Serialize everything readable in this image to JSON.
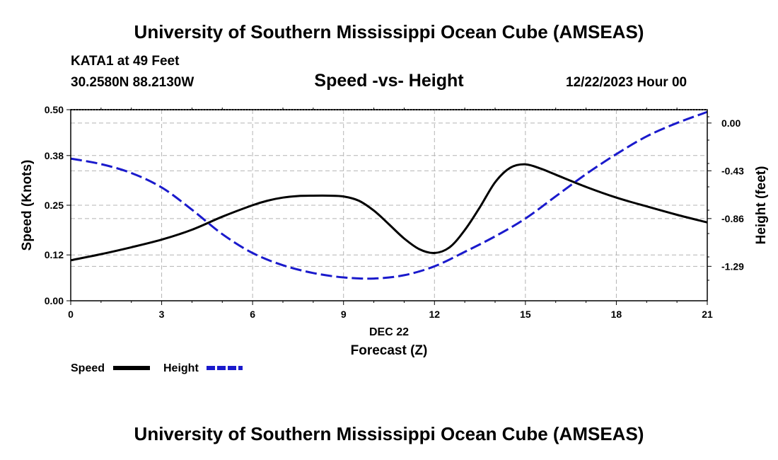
{
  "header": {
    "title": "University of Southern Mississippi Ocean Cube (AMSEAS)",
    "station": "KATA1 at 49 Feet",
    "coords": "30.2580N  88.2130W",
    "chart_title": "Speed -vs- Height",
    "datetime": "12/22/2023 Hour 00"
  },
  "footer": {
    "title": "University of Southern Mississippi Ocean Cube (AMSEAS)"
  },
  "colors": {
    "speed": "#000000",
    "height": "#1a1acc",
    "grid": "#b4b4b4"
  },
  "chart_data": {
    "type": "line",
    "title": "Speed -vs- Height",
    "xlabel": "Forecast (Z)",
    "xlabel_date": "DEC 22",
    "ylabel": "Speed (Knots)",
    "y2label": "Height (feet)",
    "xlim": [
      0,
      21
    ],
    "ylim": [
      0,
      0.5
    ],
    "y2lim": [
      -1.6,
      0.12
    ],
    "x_ticks": [
      "0",
      "3",
      "6",
      "9",
      "12",
      "15",
      "18",
      "21"
    ],
    "y_ticks": [
      "0.00",
      "0.12",
      "0.25",
      "0.38",
      "0.50"
    ],
    "y2_ticks": [
      "0.00",
      "-0.43",
      "-0.86",
      "-1.29"
    ],
    "grid": true,
    "legend": [
      {
        "name": "Speed",
        "style": "solid"
      },
      {
        "name": "Height",
        "style": "dashed"
      }
    ],
    "series": [
      {
        "name": "Speed",
        "axis": "left",
        "x": [
          0,
          1,
          2,
          3,
          4,
          5,
          6,
          6.5,
          7,
          7.5,
          8,
          8.5,
          9,
          9.5,
          10,
          10.5,
          11,
          11.5,
          12,
          12.5,
          13,
          13.5,
          14,
          14.5,
          15,
          15.5,
          16,
          17,
          18,
          19,
          20,
          21
        ],
        "values": [
          0.106,
          0.122,
          0.14,
          0.16,
          0.186,
          0.22,
          0.25,
          0.262,
          0.27,
          0.274,
          0.275,
          0.275,
          0.273,
          0.262,
          0.236,
          0.2,
          0.163,
          0.135,
          0.125,
          0.14,
          0.185,
          0.245,
          0.31,
          0.348,
          0.357,
          0.346,
          0.33,
          0.298,
          0.27,
          0.247,
          0.225,
          0.205
        ]
      },
      {
        "name": "Height",
        "axis": "right",
        "x": [
          0,
          1,
          2,
          3,
          4,
          5,
          6,
          7,
          8,
          9,
          10,
          11,
          12,
          13,
          14,
          15,
          16,
          17,
          18,
          19,
          20,
          21
        ],
        "values": [
          -0.32,
          -0.37,
          -0.45,
          -0.58,
          -0.78,
          -1.0,
          -1.17,
          -1.28,
          -1.35,
          -1.39,
          -1.4,
          -1.37,
          -1.29,
          -1.16,
          -1.02,
          -0.86,
          -0.66,
          -0.46,
          -0.28,
          -0.12,
          0.0,
          0.1
        ]
      }
    ]
  }
}
